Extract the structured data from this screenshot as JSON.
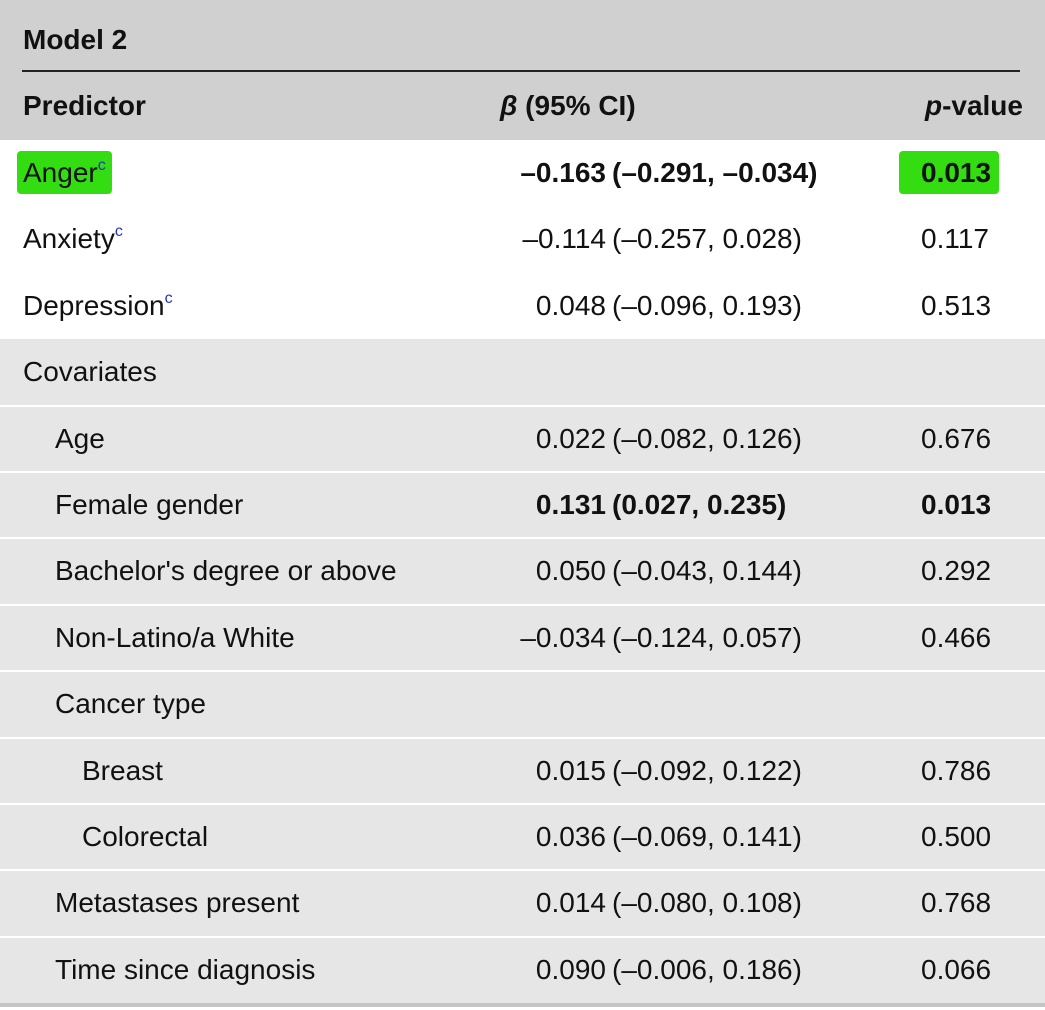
{
  "table": {
    "title": "Model 2",
    "header": [
      [
        {
          "text": "Predictor"
        }
      ],
      [
        {
          "text": "β",
          "italic": true
        },
        {
          "text": " (95% CI)"
        }
      ],
      [
        {
          "text": "p",
          "italic": true
        },
        {
          "text": "-value"
        }
      ]
    ],
    "rows": [
      {
        "label": "Anger",
        "note": "c",
        "estimate": "–0.163",
        "ci": "(–0.291, –0.034)",
        "p": "0.013",
        "indent": 0,
        "bold": true,
        "highlight": true,
        "shaded": false
      },
      {
        "label": "Anxiety",
        "note": "c",
        "estimate": "–0.114",
        "ci": "(–0.257, 0.028)",
        "p": "0.117",
        "indent": 0,
        "bold": false,
        "highlight": false,
        "shaded": false
      },
      {
        "label": "Depression",
        "note": "c",
        "estimate": "0.048",
        "ci": "(–0.096, 0.193)",
        "p": "0.513",
        "indent": 0,
        "bold": false,
        "highlight": false,
        "shaded": false
      },
      {
        "label": "Covariates",
        "indent": 0,
        "bold": false,
        "highlight": false,
        "shaded": true
      },
      {
        "label": "Age",
        "estimate": "0.022",
        "ci": "(–0.082, 0.126)",
        "p": "0.676",
        "indent": 1,
        "bold": false,
        "highlight": false,
        "shaded": true
      },
      {
        "label": "Female gender",
        "estimate": "0.131",
        "ci": "(0.027, 0.235)",
        "p": "0.013",
        "indent": 1,
        "bold": true,
        "highlight": false,
        "shaded": true
      },
      {
        "label": "Bachelor's degree or above",
        "estimate": "0.050",
        "ci": "(–0.043, 0.144)",
        "p": "0.292",
        "indent": 1,
        "bold": false,
        "highlight": false,
        "shaded": true
      },
      {
        "label": "Non-Latino/a White",
        "estimate": "–0.034",
        "ci": "(–0.124, 0.057)",
        "p": "0.466",
        "indent": 1,
        "bold": false,
        "highlight": false,
        "shaded": true
      },
      {
        "label": "Cancer type",
        "indent": 1,
        "bold": false,
        "highlight": false,
        "shaded": true
      },
      {
        "label": "Breast",
        "estimate": "0.015",
        "ci": "(–0.092, 0.122)",
        "p": "0.786",
        "indent": 2,
        "bold": false,
        "highlight": false,
        "shaded": true
      },
      {
        "label": "Colorectal",
        "estimate": "0.036",
        "ci": "(–0.069, 0.141)",
        "p": "0.500",
        "indent": 2,
        "bold": false,
        "highlight": false,
        "shaded": true
      },
      {
        "label": "Metastases present",
        "estimate": "0.014",
        "ci": "(–0.080, 0.108)",
        "p": "0.768",
        "indent": 1,
        "bold": false,
        "highlight": false,
        "shaded": true
      },
      {
        "label": "Time since diagnosis",
        "estimate": "0.090",
        "ci": "(–0.006, 0.186)",
        "p": "0.066",
        "indent": 1,
        "bold": false,
        "highlight": false,
        "shaded": true
      }
    ]
  }
}
